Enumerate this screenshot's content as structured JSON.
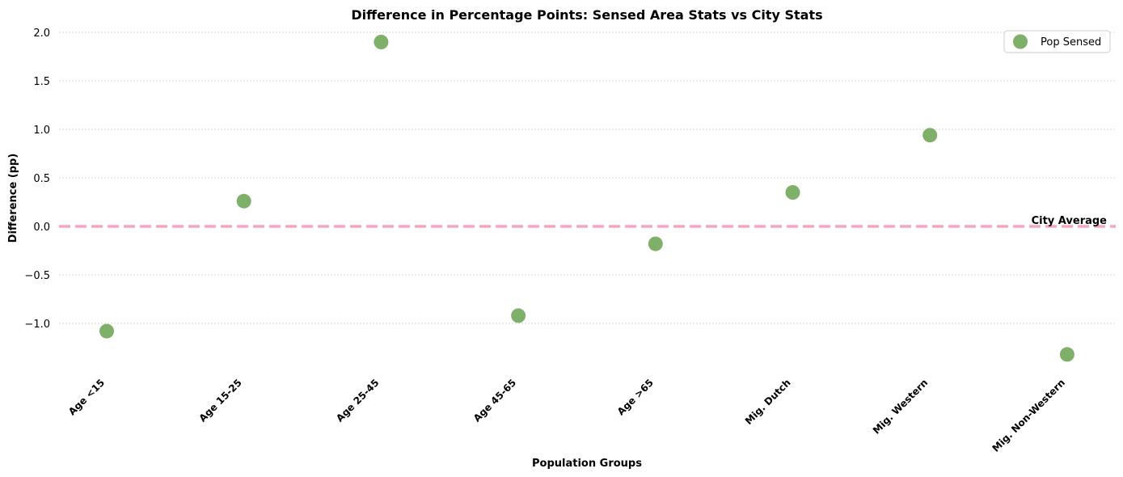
{
  "chart_data": {
    "type": "scatter",
    "title": "Difference in Percentage Points: Sensed Area Stats vs City Stats",
    "xlabel": "Population Groups",
    "ylabel": "Difference (pp)",
    "categories": [
      "Age <15",
      "Age 15-25",
      "Age 25-45",
      "Age 45-65",
      "Age >65",
      "Mig. Dutch",
      "Mig. Western",
      "Mig. Non-Western"
    ],
    "series": [
      {
        "name": "Pop Sensed",
        "color": "#7fb069",
        "values": [
          -1.08,
          0.26,
          1.9,
          -0.92,
          -0.18,
          0.35,
          0.94,
          -1.32
        ]
      }
    ],
    "ylim": [
      -1.45,
      2.1
    ],
    "yticks": [
      2.0,
      1.5,
      1.0,
      0.5,
      0.0,
      -0.5,
      -1.0
    ],
    "ytick_labels": [
      "2.0",
      "1.5",
      "1.0",
      "0.5",
      "0.0",
      "−0.5",
      "−1.0"
    ],
    "reference_line": {
      "value": 0.0,
      "label": "City Average",
      "color": "#f4a6c4",
      "style": "dashed"
    },
    "grid": "horizontal dotted",
    "legend_position": "top-right"
  }
}
